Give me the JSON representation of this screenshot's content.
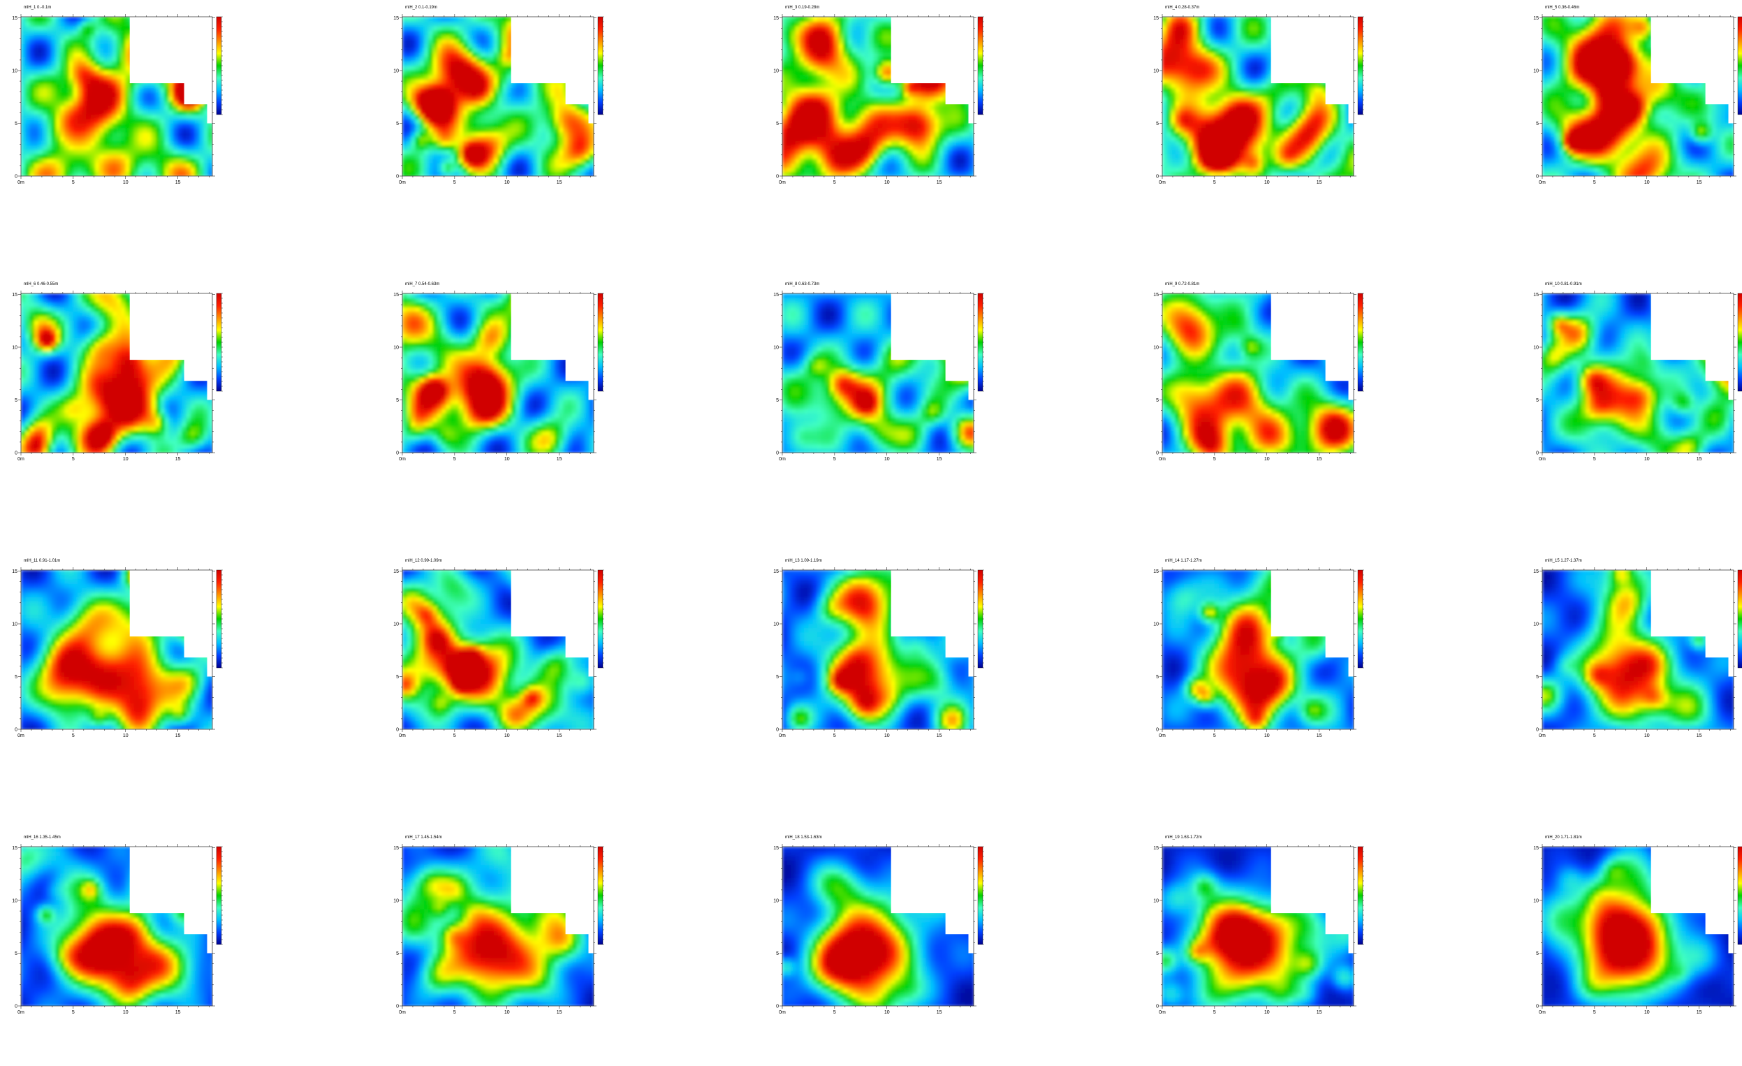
{
  "figure": {
    "xticks": [
      "0m",
      "5",
      "10",
      "15"
    ],
    "yticks": [
      "0",
      "5",
      "10",
      "15"
    ],
    "colorscale": [
      "#00008f",
      "#0040ff",
      "#00c0ff",
      "#40ffc0",
      "#00d000",
      "#ffff00",
      "#ff9000",
      "#ff2000",
      "#d00000"
    ]
  },
  "chart_data": [
    {
      "type": "heatmap",
      "title": "mlH_1 0.-0.1m"
    },
    {
      "type": "heatmap",
      "title": "mlH_2 0.1-0.19m"
    },
    {
      "type": "heatmap",
      "title": "mlH_3 0.19-0.28m"
    },
    {
      "type": "heatmap",
      "title": "mlH_4 0.28-0.37m"
    },
    {
      "type": "heatmap",
      "title": "mlH_5 0.36-0.46m"
    },
    {
      "type": "heatmap",
      "title": "mlH_6 0.46-0.55m"
    },
    {
      "type": "heatmap",
      "title": "mlH_7 0.54-0.63m"
    },
    {
      "type": "heatmap",
      "title": "mlH_8 0.63-0.73m"
    },
    {
      "type": "heatmap",
      "title": "mlH_9 0.72-0.81m"
    },
    {
      "type": "heatmap",
      "title": "mlH_10 0.81-0.91m"
    },
    {
      "type": "heatmap",
      "title": "mlH_11 0.91-1.01m"
    },
    {
      "type": "heatmap",
      "title": "mlH_12 0.99-1.09m"
    },
    {
      "type": "heatmap",
      "title": "mlH_13 1.09-1.19m"
    },
    {
      "type": "heatmap",
      "title": "mlH_14 1.17-1.27m"
    },
    {
      "type": "heatmap",
      "title": "mlH_15 1.27-1.37m"
    },
    {
      "type": "heatmap",
      "title": "mlH_16 1.35-1.45m"
    },
    {
      "type": "heatmap",
      "title": "mlH_17 1.45-1.54m"
    },
    {
      "type": "heatmap",
      "title": "mlH_18 1.53-1.63m"
    },
    {
      "type": "heatmap",
      "title": "mlH_19 1.63-1.72m"
    },
    {
      "type": "heatmap",
      "title": "mlH_20 1.71-1.81m"
    }
  ]
}
